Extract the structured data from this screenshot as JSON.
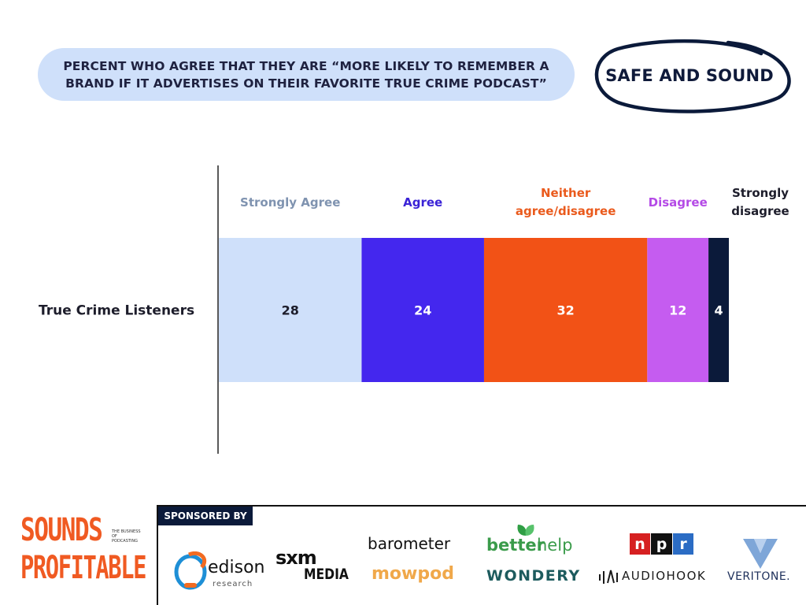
{
  "header": {
    "title_line1": "PERCENT WHO AGREE THAT THEY ARE “MORE LIKELY TO REMEMBER A",
    "title_line2": "BRAND IF IT ADVERTISES ON THEIR FAVORITE TRUE CRIME PODCAST”",
    "badge": "SAFE AND SOUND"
  },
  "chart_data": {
    "type": "bar",
    "orientation": "horizontal-stacked",
    "categories": [
      "True Crime Listeners"
    ],
    "series": [
      {
        "name": "Strongly Agree",
        "label_lines": [
          "Strongly Agree"
        ],
        "values": [
          28
        ],
        "color": "#cfe0fa",
        "header_color": "#7f93b0",
        "value_color": "#1d1d2b"
      },
      {
        "name": "Agree",
        "label_lines": [
          "Agree"
        ],
        "values": [
          24
        ],
        "color": "#4427ee",
        "header_color": "#3a22d6",
        "value_color": "#ffffff"
      },
      {
        "name": "Neither agree/disagree",
        "label_lines": [
          "Neither",
          "agree/disagree"
        ],
        "values": [
          32
        ],
        "color": "#f25216",
        "header_color": "#ea5a1c",
        "value_color": "#ffffff"
      },
      {
        "name": "Disagree",
        "label_lines": [
          "Disagree"
        ],
        "values": [
          12
        ],
        "color": "#c55cf0",
        "header_color": "#b44ae6",
        "value_color": "#ffffff"
      },
      {
        "name": "Strongly disagree",
        "label_lines": [
          "Strongly",
          "disagree"
        ],
        "values": [
          4
        ],
        "color": "#0b1a3a",
        "header_color": "#1d1d2b",
        "value_color": "#ffffff"
      }
    ],
    "xlim": [
      0,
      100
    ]
  },
  "footer": {
    "sponsored_label": "SPONSORED BY",
    "brand_line1": "SOUNDS",
    "brand_line2": "PROFITABLE",
    "brand_tagline": "THE BUSINESS OF PODCASTING",
    "sponsors": {
      "edison": "edison",
      "edison_sub": "research",
      "sxm": "sxm",
      "sxm_media": "MEDIA",
      "barometer": "barometer",
      "mowpod": "mowpod",
      "betterhelp_a": "better",
      "betterhelp_b": "help",
      "wondery": "WONDERY",
      "npr_n": "n",
      "npr_p": "p",
      "npr_r": "r",
      "audiohook": "AUDIOHOOK",
      "veritone": "VERITONE."
    }
  }
}
